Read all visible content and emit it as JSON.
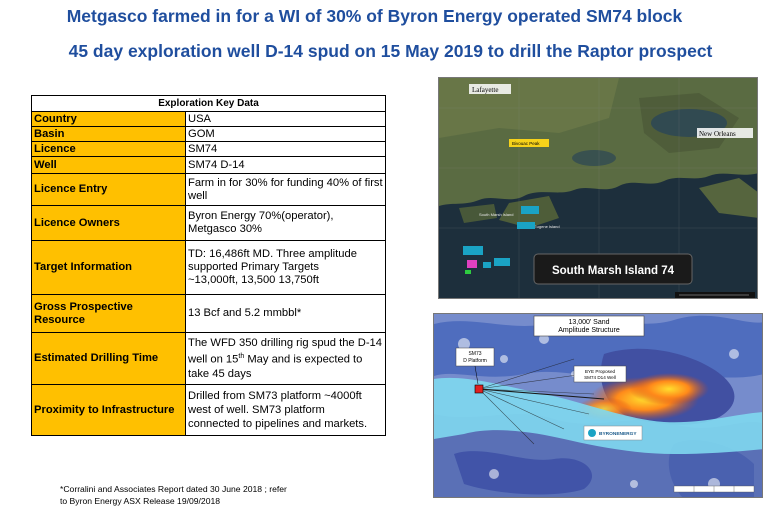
{
  "titles": {
    "line1": "Metgasco farmed in for a WI of 30% of Byron Energy operated SM74 block",
    "line2": "45 day exploration well D-14 spud on 15 May 2019 to drill the Raptor prospect"
  },
  "table": {
    "header": "Exploration Key Data",
    "rows": {
      "country": {
        "label": "Country",
        "value": "USA"
      },
      "basin": {
        "label": "Basin",
        "value": "GOM"
      },
      "licence": {
        "label": "Licence",
        "value": "SM74"
      },
      "well": {
        "label": "Well",
        "value": "SM74 D-14"
      },
      "entry": {
        "label": "Licence Entry",
        "value": "Farm in for 30% for funding 40% of first well"
      },
      "owners": {
        "label": "Licence Owners",
        "line1": "Byron Energy 70%(operator),",
        "line2": "Metgasco 30%"
      },
      "target": {
        "label": "Target Information",
        "line1": "TD: 16,486ft MD.  Three amplitude",
        "line2": "supported  Primary Targets",
        "line3": "~13,000ft, 13,500 13,750ft"
      },
      "resource": {
        "label": "Gross Prospective Resource",
        "value": "13 Bcf and 5.2 mmbbl*"
      },
      "timing": {
        "label": "Estimated Drilling Time",
        "pre": "The WFD 350 drilling  rig spud the D-14 well on 15",
        "sup": "th",
        "post": " May and is expected to take 45 days"
      },
      "infra": {
        "label": "Proximity to Infrastructure",
        "line1": "Drilled from SM73 platform ~4000ft",
        "line2": "west of well. SM73 platform",
        "line3": "connected to pipelines and markets."
      }
    }
  },
  "footnote": {
    "line1": "*Corralini and Associates Report dated 30 June 2018 ; refer",
    "line2": "to Byron Energy ASX Release 19/09/2018"
  },
  "map_top": {
    "labels": {
      "lafayette": "Lafayette",
      "new_orleans": "New Orleans",
      "bivouac_peak": "Bivouac Peak",
      "south_marsh_island": "South Marsh Island",
      "eugene_island": "Eugene Island",
      "block_label": "South Marsh Island 74"
    },
    "colors": {
      "land": "#5d6a45",
      "water": "#1d2f3c",
      "label_bg": "#1a1a1a",
      "marker": "#f7d21a"
    }
  },
  "map_bottom": {
    "header": "13,000' Sand\nAmplitude Structure",
    "header_line1": "13,000' Sand",
    "header_line2": "Amplitude Structure",
    "platform_label": "SM73\nD Platform",
    "platform_line1": "SM73",
    "platform_line2": "D Platform",
    "well_label_line1": "BYE Proposed",
    "well_label_line2": "SM74 D14 Well",
    "logo_text": "BYRONENERGY"
  }
}
